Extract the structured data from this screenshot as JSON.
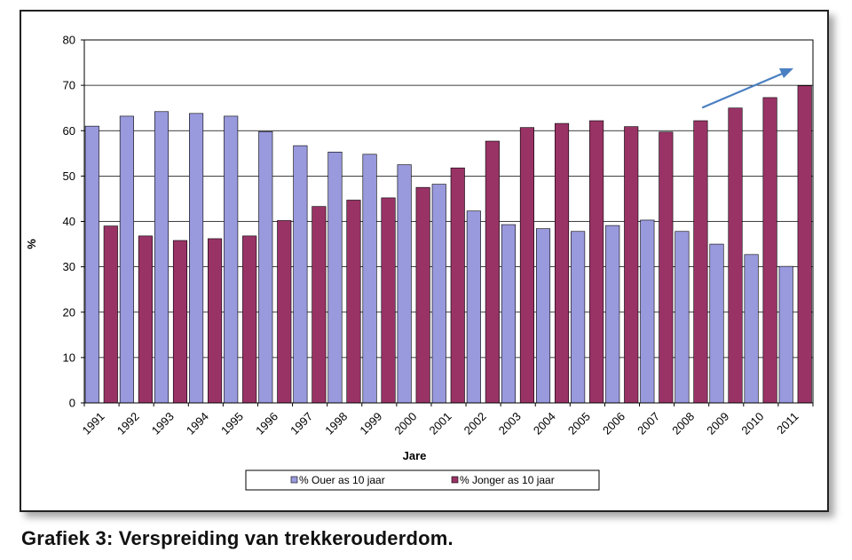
{
  "caption": "Grafiek 3: Verspreiding van trekkerouderdom.",
  "chart_data": {
    "type": "bar",
    "xlabel": "Jare",
    "ylabel": "%",
    "ylim": [
      0,
      80
    ],
    "yticks": [
      0,
      10,
      20,
      30,
      40,
      50,
      60,
      70,
      80
    ],
    "grid": true,
    "legend_position": "bottom",
    "categories": [
      "1991",
      "1992",
      "1993",
      "1994",
      "1995",
      "1996",
      "1997",
      "1998",
      "1999",
      "2000",
      "2001",
      "2002",
      "2003",
      "2004",
      "2005",
      "2006",
      "2007",
      "2008",
      "2009",
      "2010",
      "2011"
    ],
    "series": [
      {
        "name": "% Ouer as 10 jaar",
        "color": "#9999dd",
        "values": [
          61,
          63.2,
          64.2,
          63.8,
          63.2,
          59.8,
          56.7,
          55.3,
          54.8,
          52.5,
          48.2,
          42.3,
          39.3,
          38.4,
          37.8,
          39.1,
          40.3,
          37.8,
          35,
          32.7,
          30.1
        ]
      },
      {
        "name": "% Jonger as 10 jaar",
        "color": "#993366",
        "values": [
          39,
          36.8,
          35.8,
          36.2,
          36.8,
          40.2,
          43.3,
          44.7,
          45.2,
          47.5,
          51.8,
          57.7,
          60.7,
          61.6,
          62.2,
          60.9,
          59.7,
          62.2,
          65,
          67.3,
          69.9
        ]
      }
    ],
    "annotation": "trend-arrow",
    "annotation_color": "#4a7fc1"
  }
}
